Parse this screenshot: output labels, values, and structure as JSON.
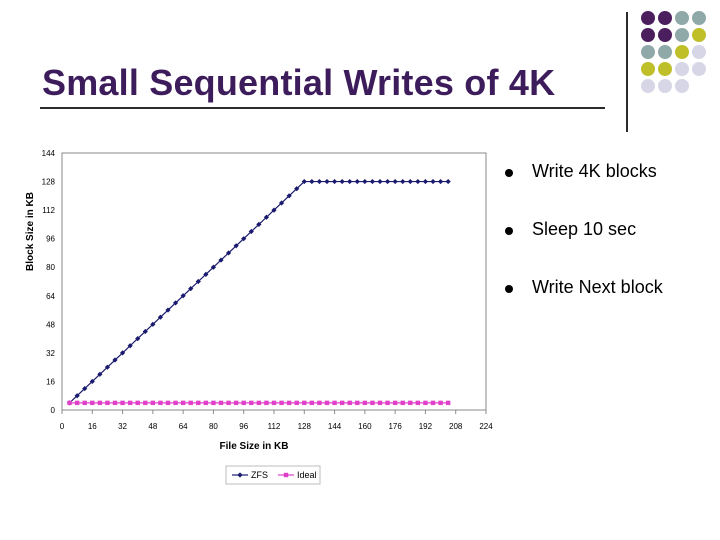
{
  "slide": {
    "title": "Small Sequential Writes of 4K",
    "title_color": "#3d1c5c",
    "bullets": [
      {
        "text": "Write 4K blocks"
      },
      {
        "text": "Sleep 10 sec"
      },
      {
        "text": "Write Next block"
      }
    ]
  },
  "decoration": {
    "palette": [
      "#4b1f5e",
      "#8fa8a8",
      "#bfbf2a",
      "#d6d6e6"
    ],
    "dot_rows": [
      [
        "#4b1f5e",
        "#4b1f5e",
        "#8fa8a8",
        "#8fa8a8"
      ],
      [
        "#4b1f5e",
        "#4b1f5e",
        "#8fa8a8",
        "#bfbf2a"
      ],
      [
        "#8fa8a8",
        "#8fa8a8",
        "#bfbf2a",
        "#d6d6e6"
      ],
      [
        "#bfbf2a",
        "#bfbf2a",
        "#d6d6e6",
        "#d6d6e6"
      ],
      [
        "#d6d6e6",
        "#d6d6e6",
        "#d6d6e6",
        "#ffffff"
      ]
    ]
  },
  "chart_data": {
    "type": "line",
    "title": "",
    "xlabel": "File Size in KB",
    "ylabel": "Block Size in KB",
    "xlim": [
      0,
      224
    ],
    "ylim": [
      0,
      144
    ],
    "x_ticks": [
      "0",
      "16",
      "32",
      "48",
      "64",
      "80",
      "96",
      "112",
      "128",
      "144",
      "160",
      "176",
      "192",
      "208",
      "224"
    ],
    "y_ticks": [
      "0",
      "16",
      "32",
      "48",
      "64",
      "80",
      "96",
      "112",
      "128",
      "144"
    ],
    "grid": false,
    "legend_position": "bottom",
    "series": [
      {
        "name": "ZFS",
        "color": "#1a1a6e",
        "marker": "diamond",
        "x": [
          4,
          8,
          12,
          16,
          20,
          24,
          28,
          32,
          36,
          40,
          44,
          48,
          52,
          56,
          60,
          64,
          68,
          72,
          76,
          80,
          84,
          88,
          92,
          96,
          100,
          104,
          108,
          112,
          116,
          120,
          124,
          128,
          132,
          136,
          140,
          144,
          148,
          152,
          156,
          160,
          164,
          168,
          172,
          176,
          180,
          184,
          188,
          192,
          196,
          200,
          204
        ],
        "y": [
          4,
          8,
          12,
          16,
          20,
          24,
          28,
          32,
          36,
          40,
          44,
          48,
          52,
          56,
          60,
          64,
          68,
          72,
          76,
          80,
          84,
          88,
          92,
          96,
          100,
          104,
          108,
          112,
          116,
          120,
          124,
          128,
          128,
          128,
          128,
          128,
          128,
          128,
          128,
          128,
          128,
          128,
          128,
          128,
          128,
          128,
          128,
          128,
          128,
          128,
          128
        ]
      },
      {
        "name": "Ideal",
        "color": "#e040c8",
        "marker": "square",
        "x": [
          4,
          8,
          12,
          16,
          20,
          24,
          28,
          32,
          36,
          40,
          44,
          48,
          52,
          56,
          60,
          64,
          68,
          72,
          76,
          80,
          84,
          88,
          92,
          96,
          100,
          104,
          108,
          112,
          116,
          120,
          124,
          128,
          132,
          136,
          140,
          144,
          148,
          152,
          156,
          160,
          164,
          168,
          172,
          176,
          180,
          184,
          188,
          192,
          196,
          200,
          204
        ],
        "y": [
          4,
          4,
          4,
          4,
          4,
          4,
          4,
          4,
          4,
          4,
          4,
          4,
          4,
          4,
          4,
          4,
          4,
          4,
          4,
          4,
          4,
          4,
          4,
          4,
          4,
          4,
          4,
          4,
          4,
          4,
          4,
          4,
          4,
          4,
          4,
          4,
          4,
          4,
          4,
          4,
          4,
          4,
          4,
          4,
          4,
          4,
          4,
          4,
          4,
          4,
          4
        ]
      }
    ]
  }
}
